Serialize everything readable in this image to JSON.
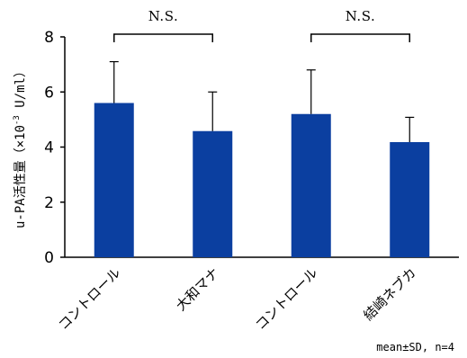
{
  "chart_data": {
    "type": "bar",
    "categories": [
      "コントロール",
      "大和マナ",
      "コントロール",
      "結崎ネブカ"
    ],
    "values": [
      5.6,
      4.58,
      5.2,
      4.18
    ],
    "errors": [
      1.5,
      1.42,
      1.6,
      0.9
    ],
    "ylabel_main": "u-PA活性量（×10",
    "ylabel_sup": "-3",
    "ylabel_tail": " U/ml）",
    "ylim": [
      0,
      8
    ],
    "yticks": [
      "0",
      "2",
      "4",
      "6",
      "8"
    ],
    "grid": false,
    "bar_color": "#0b3fa0",
    "significance": [
      {
        "from": 0,
        "to": 1,
        "label": "N.S."
      },
      {
        "from": 2,
        "to": 3,
        "label": "N.S."
      }
    ],
    "footnote": "mean±SD, n=4"
  }
}
